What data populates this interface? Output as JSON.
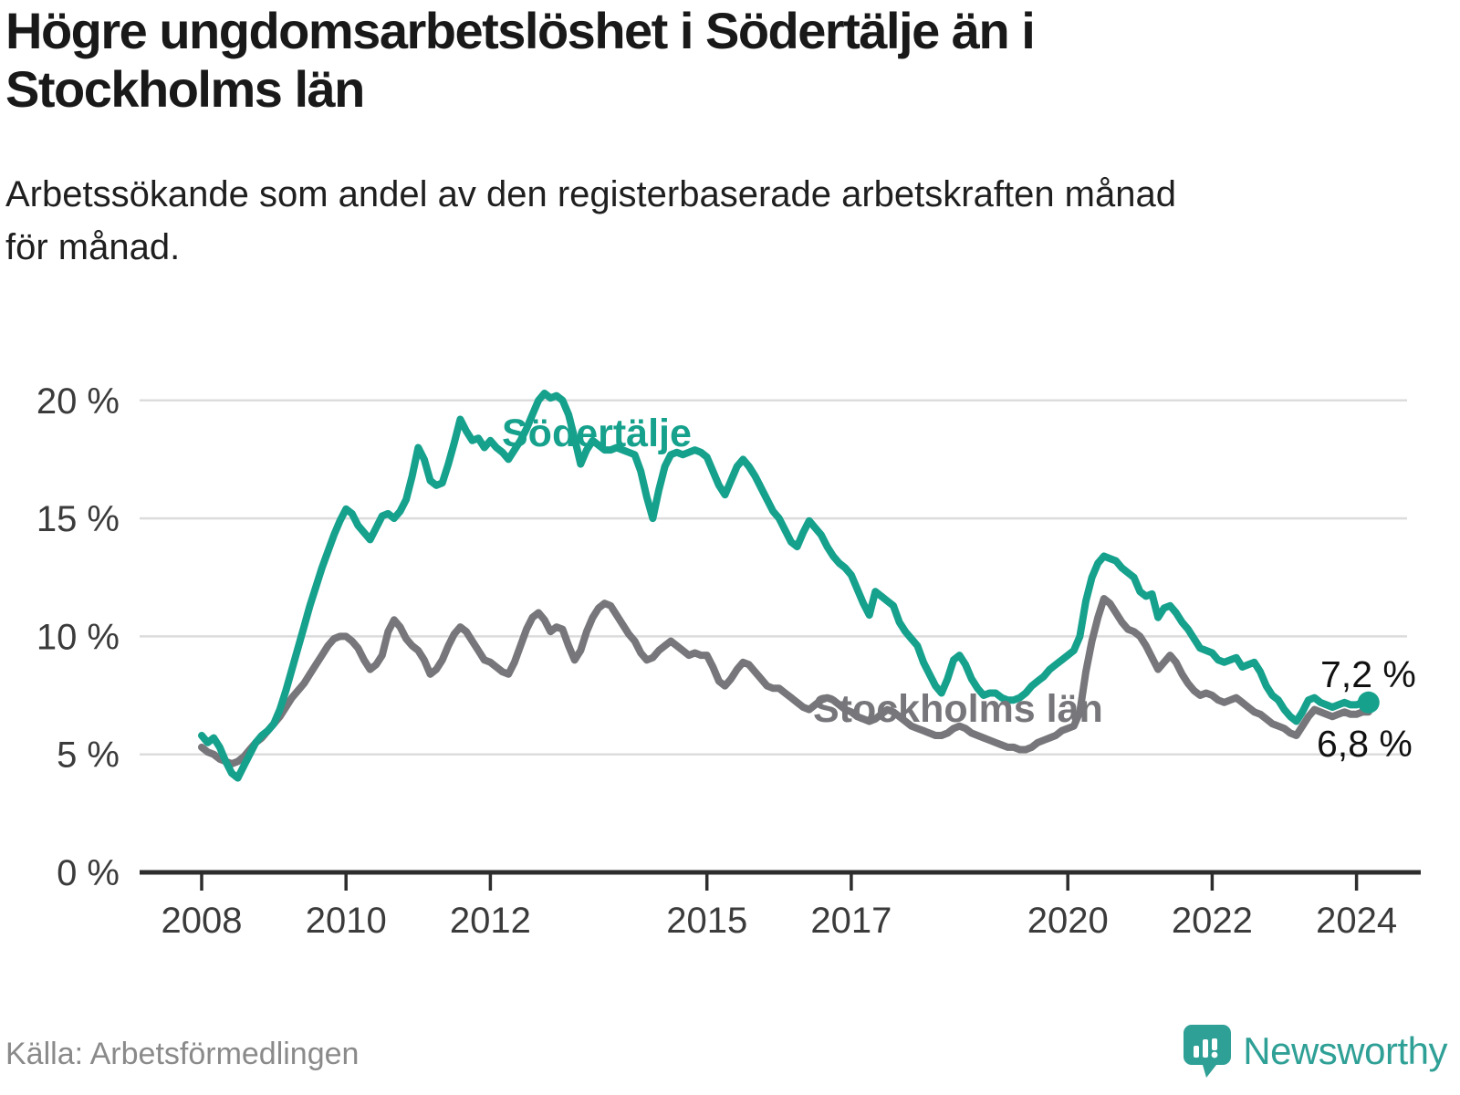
{
  "title": {
    "lines": [
      "Högre ungdomsarbetslöshet i Södertälje än i",
      "Stockholms län"
    ]
  },
  "subtitle": {
    "lines": [
      "Arbetssökande som andel av den registerbaserade arbetskraften månad",
      "för månad."
    ]
  },
  "source_label": "Källa: Arbetsförmedlingen",
  "brand_name": "Newsworthy",
  "colors": {
    "sodertalje": "#16a18d",
    "stockholm": "#77767a",
    "gridline": "#dcdcdc",
    "axis": "#2d2d2d",
    "tick_label": "#3b3b3b",
    "end_label": "#111111",
    "brand_teal": "#2fa096"
  },
  "chart_data": {
    "type": "line",
    "title": "Högre ungdomsarbetslöshet i Södertälje än i Stockholms län",
    "subtitle": "Arbetssökande som andel av den registerbaserade arbetskraften månad för månad.",
    "x_unit": "year-month",
    "x_start_year": 2008,
    "points_per_year": 12,
    "x_end": "2024-03",
    "ylim": [
      0,
      21.5
    ],
    "xlim": [
      2008,
      2024.6
    ],
    "grid": "horizontal",
    "yticks": [
      {
        "value": 20,
        "label": "20 %"
      },
      {
        "value": 15,
        "label": "15 %"
      },
      {
        "value": 10,
        "label": "10 %"
      },
      {
        "value": 5,
        "label": "5 %"
      },
      {
        "value": 0,
        "label": "0 %"
      }
    ],
    "xticks": [
      {
        "value": 2008,
        "label": "2008"
      },
      {
        "value": 2010,
        "label": "2010"
      },
      {
        "value": 2012,
        "label": "2012"
      },
      {
        "value": 2015,
        "label": "2015"
      },
      {
        "value": 2017,
        "label": "2017"
      },
      {
        "value": 2020,
        "label": "2020"
      },
      {
        "value": 2022,
        "label": "2022"
      },
      {
        "value": 2024,
        "label": "2024"
      }
    ],
    "series": [
      {
        "name": "Stockholms län",
        "color": "#77767a",
        "end_label": "6,8 %",
        "end_value": 6.8,
        "values": [
          5.3,
          5.1,
          5.0,
          4.8,
          4.7,
          4.6,
          4.7,
          4.9,
          5.2,
          5.5,
          5.7,
          6.0,
          6.3,
          6.6,
          7.0,
          7.4,
          7.7,
          8.0,
          8.4,
          8.8,
          9.2,
          9.6,
          9.9,
          10.0,
          10.0,
          9.8,
          9.5,
          9.0,
          8.6,
          8.8,
          9.2,
          10.2,
          10.7,
          10.4,
          9.9,
          9.6,
          9.4,
          9.0,
          8.4,
          8.6,
          9.0,
          9.6,
          10.1,
          10.4,
          10.2,
          9.8,
          9.4,
          9.0,
          8.9,
          8.7,
          8.5,
          8.4,
          8.9,
          9.6,
          10.3,
          10.8,
          11.0,
          10.7,
          10.2,
          10.4,
          10.3,
          9.6,
          9.0,
          9.4,
          10.2,
          10.8,
          11.2,
          11.4,
          11.3,
          10.9,
          10.5,
          10.1,
          9.8,
          9.3,
          9.0,
          9.1,
          9.4,
          9.6,
          9.8,
          9.6,
          9.4,
          9.2,
          9.3,
          9.2,
          9.2,
          8.7,
          8.1,
          7.9,
          8.2,
          8.6,
          8.9,
          8.8,
          8.5,
          8.2,
          7.9,
          7.8,
          7.8,
          7.6,
          7.4,
          7.2,
          7.0,
          6.9,
          7.1,
          7.3,
          7.4,
          7.3,
          7.1,
          6.9,
          6.8,
          6.6,
          6.5,
          6.4,
          6.5,
          6.7,
          6.9,
          6.8,
          6.6,
          6.4,
          6.2,
          6.1,
          6.0,
          5.9,
          5.8,
          5.8,
          5.9,
          6.1,
          6.2,
          6.1,
          5.9,
          5.8,
          5.7,
          5.6,
          5.5,
          5.4,
          5.3,
          5.3,
          5.2,
          5.2,
          5.3,
          5.5,
          5.6,
          5.7,
          5.8,
          6.0,
          6.1,
          6.2,
          6.8,
          8.5,
          9.8,
          10.8,
          11.6,
          11.4,
          11.0,
          10.6,
          10.3,
          10.2,
          10.0,
          9.6,
          9.1,
          8.6,
          8.9,
          9.2,
          8.9,
          8.4,
          8.0,
          7.7,
          7.5,
          7.6,
          7.5,
          7.3,
          7.2,
          7.3,
          7.4,
          7.2,
          7.0,
          6.8,
          6.7,
          6.5,
          6.3,
          6.2,
          6.1,
          5.9,
          5.8,
          6.2,
          6.6,
          6.9,
          6.8,
          6.7,
          6.6,
          6.7,
          6.8,
          6.7,
          6.7,
          6.8,
          6.8
        ]
      },
      {
        "name": "Södertälje",
        "color": "#16a18d",
        "end_label": "7,2 %",
        "end_value": 7.2,
        "values": [
          5.8,
          5.5,
          5.7,
          5.3,
          4.7,
          4.2,
          4.0,
          4.5,
          5.0,
          5.5,
          5.8,
          6.0,
          6.3,
          6.9,
          7.7,
          8.6,
          9.5,
          10.4,
          11.3,
          12.1,
          12.9,
          13.6,
          14.3,
          14.9,
          15.4,
          15.2,
          14.7,
          14.4,
          14.1,
          14.6,
          15.1,
          15.2,
          15.0,
          15.3,
          15.8,
          16.8,
          18.0,
          17.5,
          16.6,
          16.4,
          16.5,
          17.3,
          18.2,
          19.2,
          18.7,
          18.3,
          18.4,
          18.0,
          18.3,
          18.0,
          17.8,
          17.5,
          17.9,
          18.3,
          18.8,
          19.4,
          20.0,
          20.3,
          20.1,
          20.2,
          20.0,
          19.4,
          18.4,
          17.3,
          17.9,
          18.3,
          18.1,
          17.9,
          17.9,
          18.0,
          17.9,
          17.8,
          17.7,
          17.0,
          15.9,
          15.0,
          16.2,
          17.2,
          17.7,
          17.8,
          17.7,
          17.8,
          17.9,
          17.8,
          17.6,
          17.0,
          16.4,
          16.0,
          16.6,
          17.2,
          17.5,
          17.2,
          16.8,
          16.3,
          15.8,
          15.3,
          15.0,
          14.5,
          14.0,
          13.8,
          14.4,
          14.9,
          14.6,
          14.3,
          13.8,
          13.4,
          13.1,
          12.9,
          12.6,
          12.0,
          11.4,
          10.9,
          11.9,
          11.7,
          11.5,
          11.3,
          10.6,
          10.2,
          9.9,
          9.6,
          8.9,
          8.4,
          7.9,
          7.6,
          8.2,
          9.0,
          9.2,
          8.8,
          8.2,
          7.8,
          7.5,
          7.6,
          7.6,
          7.4,
          7.3,
          7.3,
          7.4,
          7.6,
          7.9,
          8.1,
          8.3,
          8.6,
          8.8,
          9.0,
          9.2,
          9.4,
          10.0,
          11.5,
          12.5,
          13.1,
          13.4,
          13.3,
          13.2,
          12.9,
          12.7,
          12.5,
          11.9,
          11.7,
          11.8,
          10.8,
          11.2,
          11.3,
          11.0,
          10.6,
          10.3,
          9.9,
          9.5,
          9.4,
          9.3,
          9.0,
          8.9,
          9.0,
          9.1,
          8.7,
          8.8,
          8.9,
          8.5,
          7.9,
          7.5,
          7.3,
          6.9,
          6.6,
          6.4,
          6.8,
          7.3,
          7.4,
          7.2,
          7.1,
          7.0,
          7.1,
          7.2,
          7.1,
          7.1,
          7.2,
          7.2
        ]
      }
    ],
    "legend_position": "inline-labels"
  }
}
